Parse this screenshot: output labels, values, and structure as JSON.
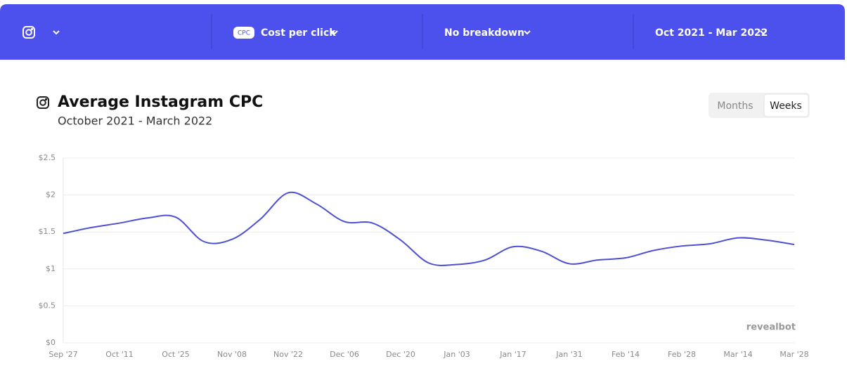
{
  "toolbar": {
    "badge": "CPC",
    "metric": "Cost per click",
    "breakdown": "No breakdown",
    "range": "Oct 2021 - Mar 2022"
  },
  "toggle": {
    "options": [
      "Months",
      "Weeks"
    ]
  },
  "watermark": "revealbot",
  "chart_data": {
    "type": "line",
    "title": "Average Instagram CPC",
    "subtitle": "October 2021 - March 2022",
    "categories": [
      "Sep '27",
      null,
      "Oct '11",
      null,
      "Oct '25",
      null,
      "Nov '08",
      null,
      "Nov '22",
      null,
      "Dec '06",
      null,
      "Dec '20",
      null,
      "Jan '03",
      null,
      "Jan '17",
      null,
      "Jan '31",
      null,
      "Feb '14",
      null,
      "Feb '28",
      null,
      "Mar '14",
      null,
      "Mar '28"
    ],
    "series": [
      {
        "name": "Average Instagram CPC",
        "color": "#4f4fd3",
        "values": [
          1.48,
          1.56,
          1.62,
          1.69,
          1.7,
          1.37,
          1.4,
          1.67,
          2.03,
          1.88,
          1.64,
          1.62,
          1.39,
          1.08,
          1.06,
          1.12,
          1.3,
          1.24,
          1.07,
          1.12,
          1.15,
          1.25,
          1.31,
          1.34,
          1.42,
          1.39,
          1.33
        ]
      }
    ],
    "ylim": [
      0,
      2.5
    ],
    "yticks": [
      {
        "value": 0,
        "label": "$0"
      },
      {
        "value": 0.5,
        "label": "$0.5"
      },
      {
        "value": 1,
        "label": "$1"
      },
      {
        "value": 1.5,
        "label": "$1.5"
      },
      {
        "value": 2,
        "label": "$2"
      },
      {
        "value": 2.5,
        "label": "$2.5"
      }
    ],
    "grid": true
  }
}
